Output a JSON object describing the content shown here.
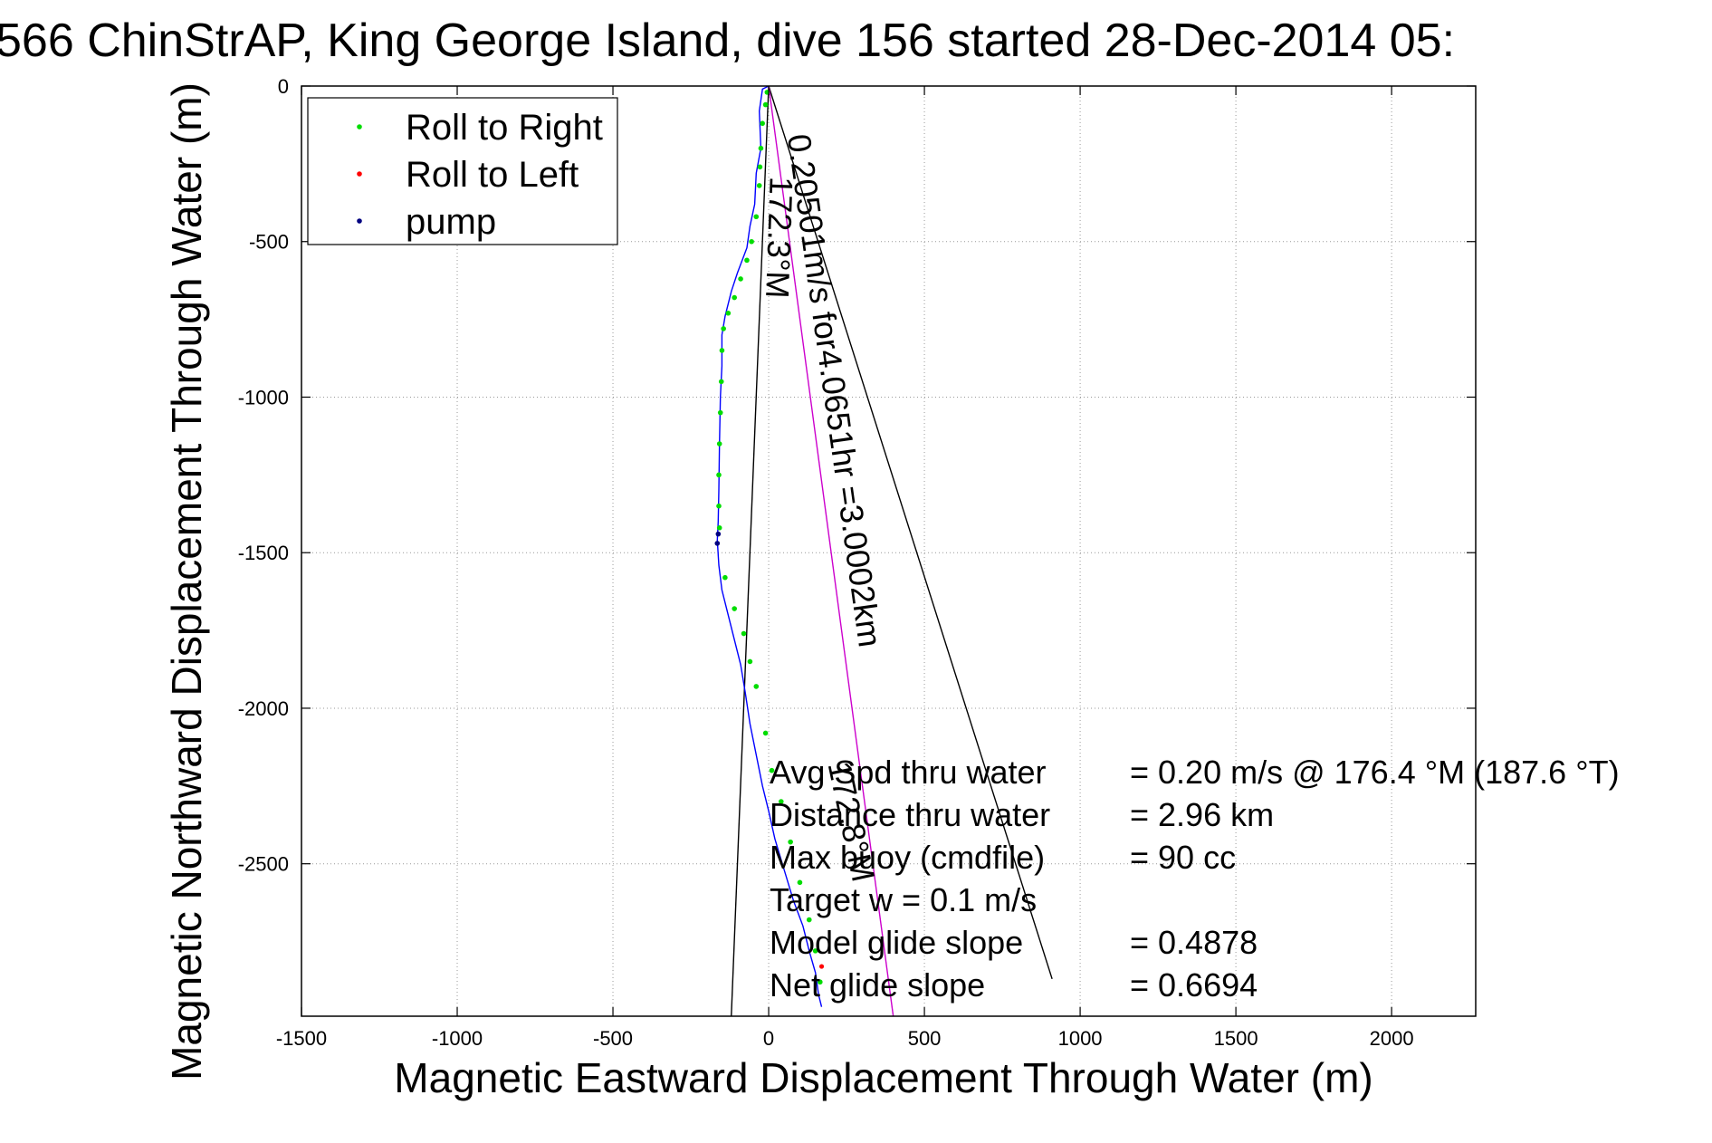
{
  "chart_data": {
    "type": "line",
    "title": "566 ChinStrAP, King George Island, dive 156 started 28-Dec-2014 05:",
    "xlabel": "Magnetic Eastward Displacement Through Water (m)",
    "ylabel": "Magnetic Northward Displacement Through Water (m)",
    "xlim": [
      -1500,
      2270
    ],
    "ylim": [
      -2990,
      0
    ],
    "xticks": [
      -1500,
      -1000,
      -500,
      0,
      500,
      1000,
      1500,
      2000
    ],
    "yticks": [
      0,
      -500,
      -1000,
      -1500,
      -2000,
      -2500
    ],
    "xtick_labels": [
      "-1500",
      "-1000",
      "-500",
      "0",
      "500",
      "1000",
      "1500",
      "2000"
    ],
    "ytick_labels": [
      "0",
      "-500",
      "-1000",
      "-1500",
      "-2000",
      "-2500"
    ],
    "grid": true,
    "legend_position": "top-left",
    "legend": [
      {
        "name": "Roll to Right",
        "color": "#00dd00"
      },
      {
        "name": "Roll to Left",
        "color": "#ff0000"
      },
      {
        "name": "pump",
        "color": "#000080"
      }
    ],
    "track": {
      "color": "#0000ff",
      "x": [
        0,
        -20,
        -30,
        -25,
        -40,
        -45,
        -60,
        -70,
        -100,
        -120,
        -140,
        -150,
        -150,
        -155,
        -158,
        -160,
        -162,
        -165,
        -160,
        -150,
        -130,
        -110,
        -90,
        -75,
        -60,
        -40,
        -20,
        0,
        20,
        50,
        80,
        110,
        130,
        150,
        160,
        170
      ],
      "y": [
        0,
        -10,
        -80,
        -200,
        -280,
        -380,
        -450,
        -520,
        -600,
        -660,
        -740,
        -800,
        -900,
        -1000,
        -1150,
        -1300,
        -1400,
        -1460,
        -1540,
        -1620,
        -1700,
        -1780,
        -1860,
        -1950,
        -2050,
        -2150,
        -2250,
        -2330,
        -2420,
        -2520,
        -2620,
        -2700,
        -2780,
        -2850,
        -2920,
        -2960
      ]
    },
    "roll_right_points": {
      "color": "#00dd00",
      "x": [
        -5,
        -10,
        -20,
        -25,
        -28,
        -30,
        -40,
        -55,
        -70,
        -90,
        -110,
        -130,
        -145,
        -150,
        -152,
        -155,
        -158,
        -160,
        -160,
        -158,
        -140,
        -110,
        -80,
        -60,
        -40,
        -10,
        10,
        40,
        70,
        100,
        130,
        150,
        165
      ],
      "y": [
        -20,
        -60,
        -120,
        -200,
        -260,
        -320,
        -420,
        -500,
        -560,
        -620,
        -680,
        -730,
        -780,
        -850,
        -950,
        -1050,
        -1150,
        -1250,
        -1350,
        -1420,
        -1580,
        -1680,
        -1760,
        -1850,
        -1930,
        -2080,
        -2200,
        -2300,
        -2430,
        -2560,
        -2680,
        -2780,
        -2880
      ]
    },
    "roll_left_points": {
      "color": "#ff0000",
      "x": [
        170
      ],
      "y": [
        -2830
      ]
    },
    "pump_points": {
      "color": "#000080",
      "x": [
        -165,
        -162
      ],
      "y": [
        -1470,
        -1440
      ]
    },
    "lines": [
      {
        "name": "black-line-1",
        "color": "#000000",
        "x": [
          0,
          910
        ],
        "y": [
          0,
          -2870
        ]
      },
      {
        "name": "black-line-2",
        "color": "#000000",
        "x": [
          0,
          -120
        ],
        "y": [
          0,
          -2990
        ]
      },
      {
        "name": "magenta-line",
        "color": "#cc00cc",
        "x": [
          0,
          400
        ],
        "y": [
          0,
          -2990
        ]
      }
    ],
    "annotations": [
      {
        "text": "172.3°M",
        "x": 5,
        "y": -290,
        "rotation_deg": 92
      },
      {
        "text": "0.20501m/s for4.0651hr =3.0002km",
        "x": 60,
        "y": -160,
        "rotation_deg": 82
      },
      {
        "text": "172.8°M",
        "x": 190,
        "y": -2180,
        "rotation_deg": 78
      }
    ],
    "stats": [
      {
        "label": "Avg Spd thru water",
        "value": "=  0.20 m/s @ 176.4 °M (187.6 °T)"
      },
      {
        "label": "Distance thru water",
        "value": "=  2.96 km"
      },
      {
        "label": "Max buoy (cmdfile)",
        "value": "= 90 cc"
      },
      {
        "label": "Target w    = 0.1 m/s",
        "value": ""
      },
      {
        "label": "Model glide slope",
        "value": "= 0.4878"
      },
      {
        "label": "Net glide slope",
        "value": "= 0.6694"
      }
    ]
  }
}
